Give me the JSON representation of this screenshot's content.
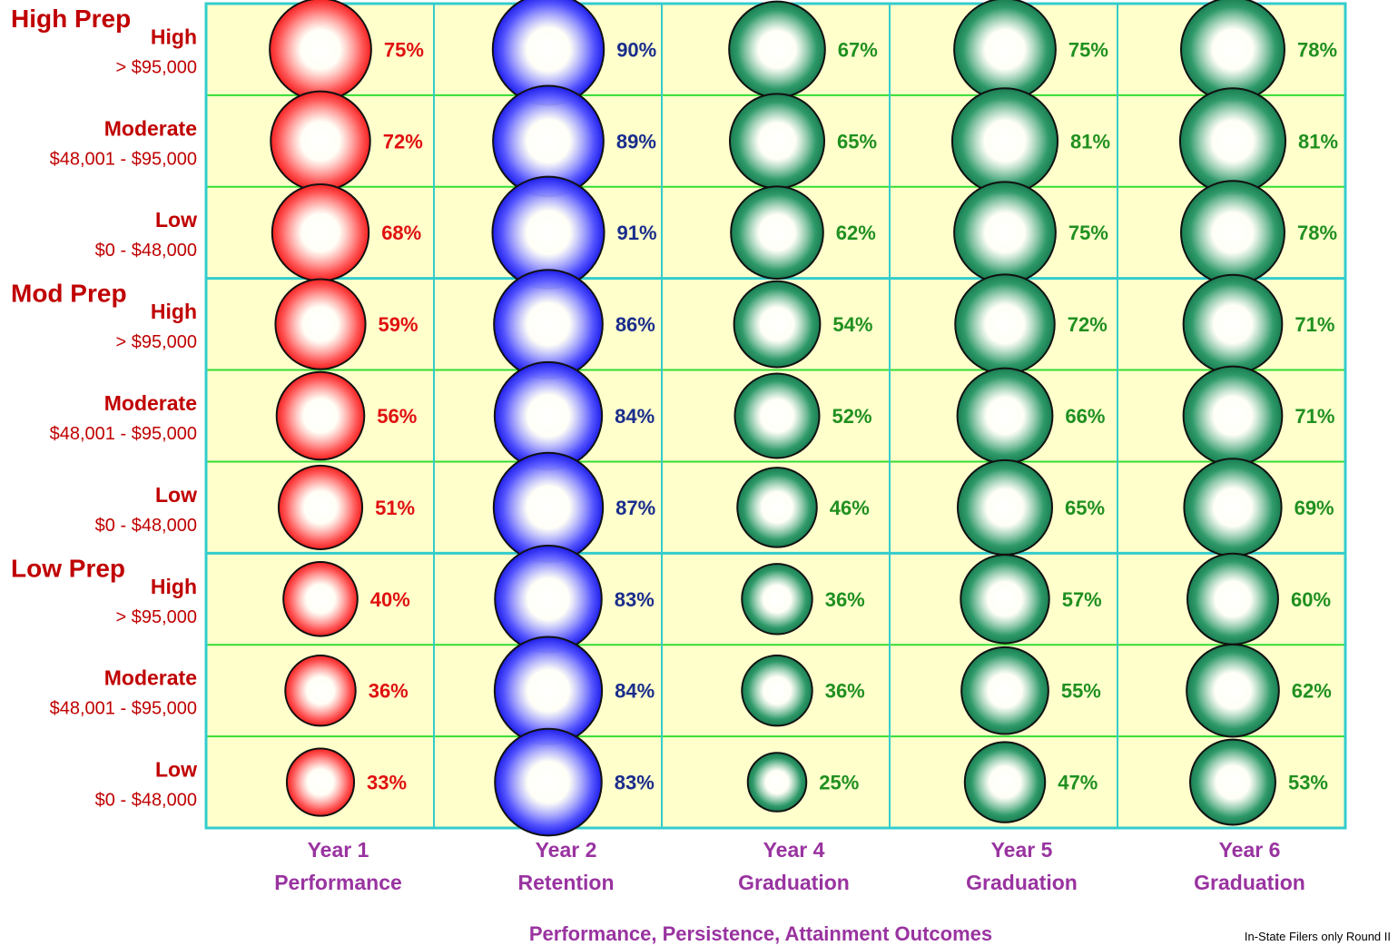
{
  "colors": {
    "cell_bg": "#ffffcc",
    "outer_border": "#33cccc",
    "inner_grid": "#33dd33",
    "row_label": "#c00000",
    "col_label": "#9933a0",
    "footnote": "#000000",
    "col_palettes": [
      {
        "light": "#ffffff",
        "mid": "#ff5a5a",
        "dark": "#ee0000",
        "text": "#e01010"
      },
      {
        "light": "#ffffff",
        "mid": "#5555ff",
        "dark": "#0000dd",
        "text": "#1a2d8c"
      },
      {
        "light": "#ffffff",
        "mid": "#2f9a6a",
        "dark": "#0d6e44",
        "text": "#209020"
      },
      {
        "light": "#ffffff",
        "mid": "#2f9a6a",
        "dark": "#0d6e44",
        "text": "#209020"
      },
      {
        "light": "#ffffff",
        "mid": "#2f9a6a",
        "dark": "#0d6e44",
        "text": "#209020"
      }
    ]
  },
  "chart_data": {
    "type": "bubble-matrix",
    "title": "",
    "xlabel": "Performance, Persistence, Attainment Outcomes",
    "footnote": "In-State  Filers only Round II",
    "groups": [
      {
        "name": "High Prep",
        "rows": [
          {
            "label": "High",
            "range": "> $95,000"
          },
          {
            "label": "Moderate",
            "range": "$48,001 - $95,000"
          },
          {
            "label": "Low",
            "range": "$0 - $48,000"
          }
        ]
      },
      {
        "name": "Mod Prep",
        "rows": [
          {
            "label": "High",
            "range": "> $95,000"
          },
          {
            "label": "Moderate",
            "range": "$48,001 - $95,000"
          },
          {
            "label": "Low",
            "range": "$0 - $48,000"
          }
        ]
      },
      {
        "name": "Low Prep",
        "rows": [
          {
            "label": "High",
            "range": "> $95,000"
          },
          {
            "label": "Moderate",
            "range": "$48,001 - $95,000"
          },
          {
            "label": "Low",
            "range": "$0 - $48,000"
          }
        ]
      }
    ],
    "columns": [
      {
        "line1": "Year 1",
        "line2": "Performance"
      },
      {
        "line1": "Year 2",
        "line2": "Retention"
      },
      {
        "line1": "Year 4",
        "line2": "Graduation"
      },
      {
        "line1": "Year 5",
        "line2": "Graduation"
      },
      {
        "line1": "Year 6",
        "line2": "Graduation"
      }
    ],
    "values": [
      [
        75,
        90,
        67,
        75,
        78
      ],
      [
        72,
        89,
        65,
        81,
        81
      ],
      [
        68,
        91,
        62,
        75,
        78
      ],
      [
        59,
        86,
        54,
        72,
        71
      ],
      [
        56,
        84,
        52,
        66,
        71
      ],
      [
        51,
        87,
        46,
        65,
        69
      ],
      [
        40,
        83,
        36,
        57,
        60
      ],
      [
        36,
        84,
        36,
        55,
        62
      ],
      [
        33,
        83,
        25,
        47,
        53
      ]
    ],
    "value_suffix": "%"
  }
}
